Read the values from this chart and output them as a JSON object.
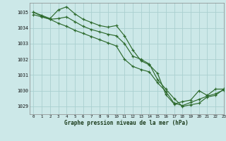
{
  "title": "Graphe pression niveau de la mer (hPa)",
  "background_color": "#cce8e8",
  "grid_color": "#aad0d0",
  "line_color": "#2d6a2d",
  "xlim": [
    -0.5,
    23
  ],
  "ylim": [
    1028.5,
    1035.6
  ],
  "yticks": [
    1029,
    1030,
    1031,
    1032,
    1033,
    1034,
    1035
  ],
  "xticks": [
    0,
    1,
    2,
    3,
    4,
    5,
    6,
    7,
    8,
    9,
    10,
    11,
    12,
    13,
    14,
    15,
    16,
    17,
    18,
    19,
    20,
    21,
    22,
    23
  ],
  "lines": [
    [
      1035.0,
      1034.8,
      1034.6,
      1035.15,
      1035.35,
      1034.9,
      1034.55,
      1034.35,
      1034.15,
      1034.05,
      1034.15,
      1033.5,
      1032.6,
      1031.9,
      1031.65,
      1031.1,
      1029.75,
      1029.15,
      1029.3,
      1029.4,
      1030.0,
      1029.7,
      1030.1,
      1030.1
    ],
    [
      1035.0,
      1034.75,
      1034.55,
      1034.6,
      1034.7,
      1034.4,
      1034.1,
      1033.9,
      1033.75,
      1033.6,
      1033.5,
      1033.0,
      1032.2,
      1032.0,
      1031.7,
      1030.7,
      1030.1,
      1029.5,
      1029.0,
      1029.1,
      1029.2,
      1029.6,
      1029.7,
      1030.1
    ],
    [
      1034.85,
      1034.7,
      1034.55,
      1034.3,
      1034.1,
      1033.85,
      1033.65,
      1033.45,
      1033.25,
      1033.05,
      1032.85,
      1032.0,
      1031.55,
      1031.35,
      1031.2,
      1030.5,
      1029.95,
      1029.2,
      1029.05,
      1029.25,
      1029.45,
      1029.65,
      1029.8,
      1030.05
    ]
  ]
}
